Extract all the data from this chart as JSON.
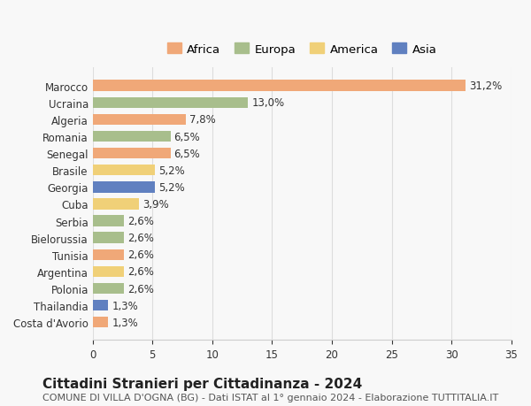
{
  "countries": [
    "Marocco",
    "Ucraina",
    "Algeria",
    "Romania",
    "Senegal",
    "Brasile",
    "Georgia",
    "Cuba",
    "Serbia",
    "Bielorussia",
    "Tunisia",
    "Argentina",
    "Polonia",
    "Thailandia",
    "Costa d'Avorio"
  ],
  "values": [
    31.2,
    13.0,
    7.8,
    6.5,
    6.5,
    5.2,
    5.2,
    3.9,
    2.6,
    2.6,
    2.6,
    2.6,
    2.6,
    1.3,
    1.3
  ],
  "labels": [
    "31,2%",
    "13,0%",
    "7,8%",
    "6,5%",
    "6,5%",
    "5,2%",
    "5,2%",
    "3,9%",
    "2,6%",
    "2,6%",
    "2,6%",
    "2,6%",
    "2,6%",
    "1,3%",
    "1,3%"
  ],
  "continents": [
    "Africa",
    "Europa",
    "Africa",
    "Europa",
    "Africa",
    "America",
    "Asia",
    "America",
    "Europa",
    "Europa",
    "Africa",
    "America",
    "Europa",
    "Asia",
    "Africa"
  ],
  "continent_colors": {
    "Africa": "#F0A878",
    "Europa": "#A8BE8C",
    "America": "#F0D078",
    "Asia": "#6080C0"
  },
  "legend_order": [
    "Africa",
    "Europa",
    "America",
    "Asia"
  ],
  "title": "Cittadini Stranieri per Cittadinanza - 2024",
  "subtitle": "COMUNE DI VILLA D'OGNA (BG) - Dati ISTAT al 1° gennaio 2024 - Elaborazione TUTTITALIA.IT",
  "xlabel": "",
  "xlim": [
    0,
    35
  ],
  "xticks": [
    0,
    5,
    10,
    15,
    20,
    25,
    30,
    35
  ],
  "background_color": "#f8f8f8",
  "bar_height": 0.65,
  "label_fontsize": 8.5,
  "tick_fontsize": 8.5,
  "title_fontsize": 11,
  "subtitle_fontsize": 8
}
